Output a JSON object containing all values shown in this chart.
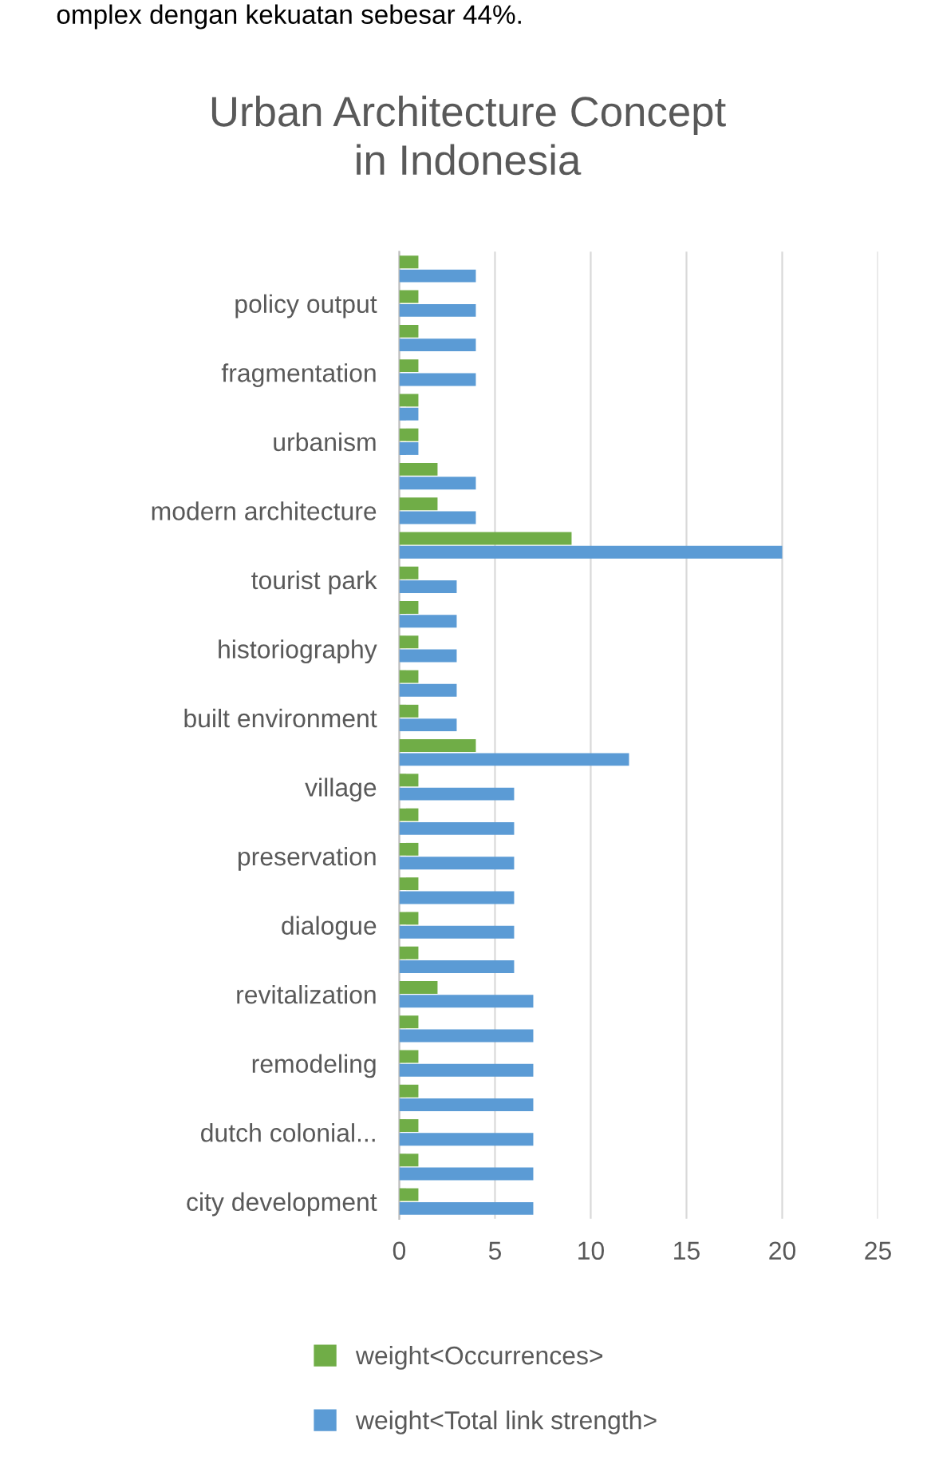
{
  "chart_data": {
    "type": "bar",
    "orientation": "horizontal",
    "title": "Urban Architecture Concept\nin Indonesia",
    "annotations": [
      "omplex dengan kekuatan sebesar 44%."
    ],
    "categories": [
      null,
      "policy output",
      null,
      "fragmentation",
      null,
      "urbanism",
      null,
      "modern architecture",
      null,
      "tourist park",
      null,
      "historiography",
      null,
      "built environment",
      null,
      "village",
      null,
      "preservation",
      null,
      "dialogue",
      null,
      "revitalization",
      null,
      "remodeling",
      null,
      "dutch colonial...",
      null,
      "city development"
    ],
    "series": [
      {
        "name": "weight<Occurrences>",
        "color": "#70ad47",
        "values": [
          1,
          1,
          1,
          1,
          1,
          1,
          2,
          2,
          9,
          1,
          1,
          1,
          1,
          1,
          4,
          1,
          1,
          1,
          1,
          1,
          1,
          2,
          1,
          1,
          1,
          1,
          1,
          1
        ]
      },
      {
        "name": "weight<Total link strength>",
        "color": "#5b9bd5",
        "values": [
          4,
          4,
          4,
          4,
          1,
          1,
          4,
          4,
          20,
          3,
          3,
          3,
          3,
          3,
          12,
          6,
          6,
          6,
          6,
          6,
          6,
          7,
          7,
          7,
          7,
          7,
          7,
          7
        ]
      }
    ],
    "xlim": [
      0,
      25
    ],
    "xticks": [
      0,
      5,
      10,
      15,
      20,
      25
    ],
    "grid": "x",
    "legend": "bottom"
  }
}
